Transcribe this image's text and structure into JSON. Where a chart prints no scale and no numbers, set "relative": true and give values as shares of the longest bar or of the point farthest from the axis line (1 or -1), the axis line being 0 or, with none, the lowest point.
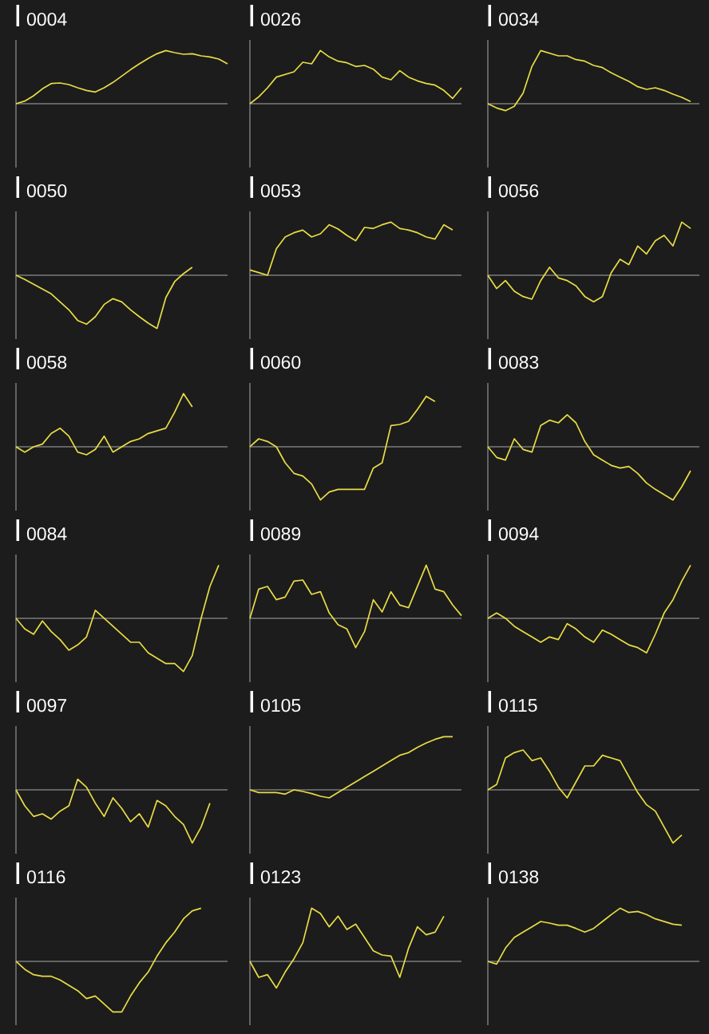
{
  "chart_data": [
    {
      "type": "line",
      "title": "0004",
      "relative": true,
      "color": "#e8dc45",
      "categories": [
        null,
        null,
        null,
        null,
        null,
        null,
        null,
        null,
        null,
        null,
        null,
        null,
        null,
        null,
        null,
        null,
        null,
        null,
        null,
        null,
        null,
        null,
        null,
        null,
        null
      ],
      "values": [
        0,
        0.05,
        0.15,
        0.28,
        0.38,
        0.39,
        0.36,
        0.3,
        0.25,
        0.22,
        0.3,
        0.4,
        0.52,
        0.64,
        0.75,
        0.85,
        0.94,
        1,
        0.96,
        0.93,
        0.94,
        0.9,
        0.88,
        0.84,
        0.75
      ]
    },
    {
      "type": "line",
      "title": "0026",
      "relative": true,
      "color": "#e8dc45",
      "categories": [
        null,
        null,
        null,
        null,
        null,
        null,
        null,
        null,
        null,
        null,
        null,
        null,
        null,
        null,
        null,
        null,
        null,
        null,
        null,
        null,
        null,
        null,
        null,
        null,
        null
      ],
      "values": [
        0,
        0.13,
        0.3,
        0.5,
        0.55,
        0.6,
        0.78,
        0.75,
        1,
        0.88,
        0.8,
        0.77,
        0.7,
        0.72,
        0.65,
        0.5,
        0.45,
        0.62,
        0.5,
        0.43,
        0.38,
        0.35,
        0.25,
        0.1,
        0.3
      ]
    },
    {
      "type": "line",
      "title": "0034",
      "relative": true,
      "color": "#e8dc45",
      "categories": [
        null,
        null,
        null,
        null,
        null,
        null,
        null,
        null,
        null,
        null,
        null,
        null,
        null,
        null,
        null,
        null,
        null,
        null,
        null,
        null,
        null,
        null,
        null,
        null,
        null
      ],
      "values": [
        0,
        -0.08,
        -0.13,
        -0.05,
        0.2,
        0.7,
        1,
        0.95,
        0.9,
        0.9,
        0.83,
        0.8,
        0.72,
        0.68,
        0.58,
        0.5,
        0.42,
        0.32,
        0.27,
        0.3,
        0.25,
        0.18,
        0.12,
        0.04,
        null
      ]
    },
    {
      "type": "line",
      "title": "0050",
      "relative": true,
      "color": "#e8dc45",
      "categories": [
        null,
        null,
        null,
        null,
        null,
        null,
        null,
        null,
        null,
        null,
        null,
        null,
        null,
        null,
        null,
        null,
        null,
        null,
        null,
        null,
        null,
        null,
        null,
        null,
        null
      ],
      "values": [
        0,
        -0.08,
        -0.17,
        -0.26,
        -0.35,
        -0.5,
        -0.65,
        -0.85,
        -0.92,
        -0.78,
        -0.55,
        -0.44,
        -0.5,
        -0.65,
        -0.78,
        -0.9,
        -1,
        -0.42,
        -0.12,
        0.03,
        0.15,
        null,
        null,
        null,
        null
      ]
    },
    {
      "type": "line",
      "title": "0053",
      "relative": true,
      "color": "#e8dc45",
      "categories": [
        null,
        null,
        null,
        null,
        null,
        null,
        null,
        null,
        null,
        null,
        null,
        null,
        null,
        null,
        null,
        null,
        null,
        null,
        null,
        null,
        null,
        null,
        null,
        null,
        null
      ],
      "values": [
        0.1,
        0.05,
        0,
        0.5,
        0.72,
        0.8,
        0.85,
        0.72,
        0.78,
        0.95,
        0.87,
        0.75,
        0.65,
        0.9,
        0.88,
        0.95,
        1,
        0.88,
        0.85,
        0.8,
        0.72,
        0.68,
        0.95,
        0.85,
        null
      ]
    },
    {
      "type": "line",
      "title": "0056",
      "relative": true,
      "color": "#e8dc45",
      "categories": [
        null,
        null,
        null,
        null,
        null,
        null,
        null,
        null,
        null,
        null,
        null,
        null,
        null,
        null,
        null,
        null,
        null,
        null,
        null,
        null,
        null,
        null,
        null,
        null,
        null
      ],
      "values": [
        0,
        -0.25,
        -0.1,
        -0.3,
        -0.4,
        -0.45,
        -0.1,
        0.15,
        -0.05,
        -0.1,
        -0.2,
        -0.4,
        -0.5,
        -0.4,
        0.05,
        0.3,
        0.2,
        0.55,
        0.4,
        0.65,
        0.75,
        0.55,
        1,
        0.88,
        null
      ]
    },
    {
      "type": "line",
      "title": "0058",
      "relative": true,
      "color": "#e8dc45",
      "categories": [
        null,
        null,
        null,
        null,
        null,
        null,
        null,
        null,
        null,
        null,
        null,
        null,
        null,
        null,
        null,
        null,
        null,
        null,
        null,
        null,
        null,
        null,
        null,
        null,
        null
      ],
      "values": [
        0,
        -0.1,
        0,
        0.05,
        0.25,
        0.35,
        0.2,
        -0.1,
        -0.15,
        -0.05,
        0.2,
        -0.1,
        0,
        0.1,
        0.15,
        0.25,
        0.3,
        0.35,
        0.65,
        1,
        0.75,
        null,
        null,
        null,
        null
      ]
    },
    {
      "type": "line",
      "title": "0060",
      "relative": true,
      "color": "#e8dc45",
      "categories": [
        null,
        null,
        null,
        null,
        null,
        null,
        null,
        null,
        null,
        null,
        null,
        null,
        null,
        null,
        null,
        null,
        null,
        null,
        null,
        null,
        null,
        null,
        null,
        null,
        null
      ],
      "values": [
        0,
        0.15,
        0.1,
        0,
        -0.3,
        -0.5,
        -0.55,
        -0.7,
        -1,
        -0.85,
        -0.8,
        -0.8,
        -0.8,
        -0.8,
        -0.4,
        -0.3,
        0.4,
        0.42,
        0.48,
        0.7,
        0.95,
        0.85,
        null,
        null,
        null
      ]
    },
    {
      "type": "line",
      "title": "0083",
      "relative": true,
      "color": "#e8dc45",
      "categories": [
        null,
        null,
        null,
        null,
        null,
        null,
        null,
        null,
        null,
        null,
        null,
        null,
        null,
        null,
        null,
        null,
        null,
        null,
        null,
        null,
        null,
        null,
        null,
        null,
        null
      ],
      "values": [
        0,
        -0.2,
        -0.25,
        0.15,
        -0.05,
        -0.1,
        0.4,
        0.5,
        0.45,
        0.6,
        0.45,
        0.1,
        -0.15,
        -0.25,
        -0.35,
        -0.4,
        -0.37,
        -0.5,
        -0.68,
        -0.8,
        -0.9,
        -1,
        -0.75,
        -0.45,
        null
      ]
    },
    {
      "type": "line",
      "title": "0084",
      "relative": true,
      "color": "#e8dc45",
      "categories": [
        null,
        null,
        null,
        null,
        null,
        null,
        null,
        null,
        null,
        null,
        null,
        null,
        null,
        null,
        null,
        null,
        null,
        null,
        null,
        null,
        null,
        null,
        null,
        null,
        null
      ],
      "values": [
        0,
        -0.2,
        -0.3,
        -0.05,
        -0.25,
        -0.4,
        -0.6,
        -0.5,
        -0.35,
        0.15,
        0,
        -0.15,
        -0.3,
        -0.45,
        -0.45,
        -0.65,
        -0.75,
        -0.85,
        -0.85,
        -1,
        -0.7,
        0,
        0.6,
        1,
        null
      ]
    },
    {
      "type": "line",
      "title": "0089",
      "relative": true,
      "color": "#e8dc45",
      "categories": [
        null,
        null,
        null,
        null,
        null,
        null,
        null,
        null,
        null,
        null,
        null,
        null,
        null,
        null,
        null,
        null,
        null,
        null,
        null,
        null,
        null,
        null,
        null,
        null,
        null
      ],
      "values": [
        0,
        0.55,
        0.6,
        0.35,
        0.4,
        0.7,
        0.72,
        0.45,
        0.5,
        0.1,
        -0.12,
        -0.2,
        -0.55,
        -0.25,
        0.35,
        0.12,
        0.5,
        0.25,
        0.2,
        0.6,
        1,
        0.55,
        0.5,
        0.25,
        0.05
      ]
    },
    {
      "type": "line",
      "title": "0094",
      "relative": true,
      "color": "#e8dc45",
      "categories": [
        null,
        null,
        null,
        null,
        null,
        null,
        null,
        null,
        null,
        null,
        null,
        null,
        null,
        null,
        null,
        null,
        null,
        null,
        null,
        null,
        null,
        null,
        null,
        null,
        null
      ],
      "values": [
        0,
        0.1,
        0,
        -0.15,
        -0.25,
        -0.35,
        -0.45,
        -0.35,
        -0.4,
        -0.1,
        -0.2,
        -0.35,
        -0.45,
        -0.22,
        -0.3,
        -0.4,
        -0.5,
        -0.55,
        -0.65,
        -0.3,
        0.1,
        0.35,
        0.7,
        1,
        null
      ]
    },
    {
      "type": "line",
      "title": "0097",
      "relative": true,
      "color": "#e8dc45",
      "categories": [
        null,
        null,
        null,
        null,
        null,
        null,
        null,
        null,
        null,
        null,
        null,
        null,
        null,
        null,
        null,
        null,
        null,
        null,
        null,
        null,
        null,
        null,
        null,
        null,
        null
      ],
      "values": [
        0,
        -0.3,
        -0.5,
        -0.45,
        -0.55,
        -0.4,
        -0.3,
        0.2,
        0.05,
        -0.25,
        -0.5,
        -0.15,
        -0.35,
        -0.6,
        -0.45,
        -0.7,
        -0.2,
        -0.3,
        -0.5,
        -0.65,
        -1,
        -0.7,
        -0.25,
        null,
        null
      ]
    },
    {
      "type": "line",
      "title": "0105",
      "relative": true,
      "color": "#e8dc45",
      "categories": [
        null,
        null,
        null,
        null,
        null,
        null,
        null,
        null,
        null,
        null,
        null,
        null,
        null,
        null,
        null,
        null,
        null,
        null,
        null,
        null,
        null,
        null,
        null,
        null,
        null
      ],
      "values": [
        0,
        -0.05,
        -0.05,
        -0.05,
        -0.08,
        0,
        -0.03,
        -0.07,
        -0.12,
        -0.15,
        -0.05,
        0.05,
        0.15,
        0.25,
        0.35,
        0.45,
        0.55,
        0.65,
        0.7,
        0.8,
        0.88,
        0.95,
        1,
        1,
        null
      ]
    },
    {
      "type": "line",
      "title": "0115",
      "relative": true,
      "color": "#e8dc45",
      "categories": [
        null,
        null,
        null,
        null,
        null,
        null,
        null,
        null,
        null,
        null,
        null,
        null,
        null,
        null,
        null,
        null,
        null,
        null,
        null,
        null,
        null,
        null,
        null,
        null,
        null
      ],
      "values": [
        0,
        0.1,
        0.6,
        0.7,
        0.75,
        0.55,
        0.6,
        0.35,
        0.05,
        -0.15,
        0.15,
        0.45,
        0.45,
        0.65,
        0.6,
        0.55,
        0.25,
        -0.05,
        -0.28,
        -0.4,
        -0.7,
        -1,
        -0.85,
        null,
        null
      ]
    },
    {
      "type": "line",
      "title": "0116",
      "relative": true,
      "color": "#e8dc45",
      "categories": [
        null,
        null,
        null,
        null,
        null,
        null,
        null,
        null,
        null,
        null,
        null,
        null,
        null,
        null,
        null,
        null,
        null,
        null,
        null,
        null,
        null,
        null,
        null,
        null,
        null
      ],
      "values": [
        0,
        -0.15,
        -0.25,
        -0.28,
        -0.28,
        -0.35,
        -0.45,
        -0.55,
        -0.7,
        -0.65,
        -0.8,
        -0.95,
        -0.95,
        -0.65,
        -0.4,
        -0.2,
        0.1,
        0.35,
        0.55,
        0.8,
        0.95,
        1,
        null,
        null,
        null
      ]
    },
    {
      "type": "line",
      "title": "0123",
      "relative": true,
      "color": "#e8dc45",
      "categories": [
        null,
        null,
        null,
        null,
        null,
        null,
        null,
        null,
        null,
        null,
        null,
        null,
        null,
        null,
        null,
        null,
        null,
        null,
        null,
        null,
        null,
        null,
        null,
        null,
        null
      ],
      "values": [
        0,
        -0.3,
        -0.25,
        -0.5,
        -0.2,
        0.05,
        0.35,
        1,
        0.9,
        0.65,
        0.85,
        0.6,
        0.7,
        0.45,
        0.2,
        0.12,
        0.1,
        -0.3,
        0.25,
        0.65,
        0.5,
        0.55,
        0.85,
        null,
        null
      ]
    },
    {
      "type": "line",
      "title": "0138",
      "relative": true,
      "color": "#e8dc45",
      "categories": [
        null,
        null,
        null,
        null,
        null,
        null,
        null,
        null,
        null,
        null,
        null,
        null,
        null,
        null,
        null,
        null,
        null,
        null,
        null,
        null,
        null,
        null,
        null,
        null,
        null
      ],
      "values": [
        0,
        -0.05,
        0.25,
        0.45,
        0.55,
        0.65,
        0.75,
        0.72,
        0.68,
        0.68,
        0.62,
        0.55,
        0.62,
        0.75,
        0.88,
        1,
        0.92,
        0.94,
        0.88,
        0.8,
        0.75,
        0.7,
        0.68,
        null,
        null
      ]
    }
  ]
}
